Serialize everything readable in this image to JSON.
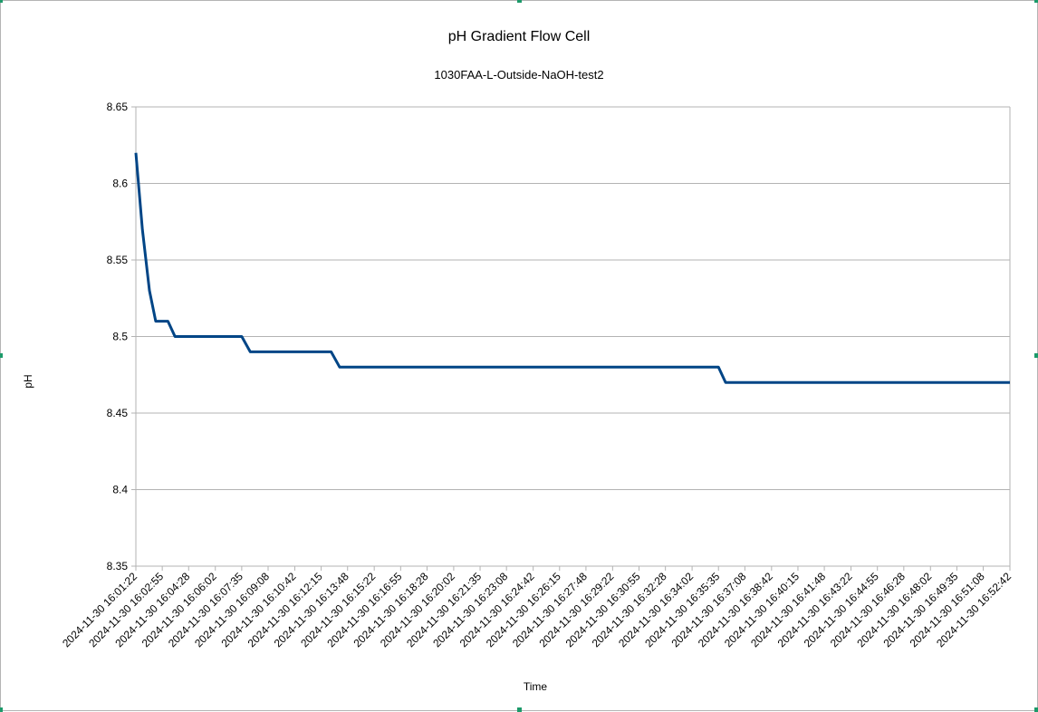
{
  "chart_data": {
    "type": "line",
    "title": "pH Gradient Flow Cell",
    "subtitle": "1030FAA-L-Outside-NaOH-test2",
    "xlabel": "Time",
    "ylabel": "pH",
    "ylim": [
      8.35,
      8.65
    ],
    "y_ticks": [
      "8.35",
      "8.4",
      "8.45",
      "8.5",
      "8.55",
      "8.6",
      "8.65"
    ],
    "grid": "horizontal",
    "line_color": "#004586",
    "x_tick_labels": [
      "2024-11-30 16:01:22",
      "2024-11-30 16:02:55",
      "2024-11-30 16:04:28",
      "2024-11-30 16:06:02",
      "2024-11-30 16:07:35",
      "2024-11-30 16:09:08",
      "2024-11-30 16:10:42",
      "2024-11-30 16:12:15",
      "2024-11-30 16:13:48",
      "2024-11-30 16:15:22",
      "2024-11-30 16:16:55",
      "2024-11-30 16:18:28",
      "2024-11-30 16:20:02",
      "2024-11-30 16:21:35",
      "2024-11-30 16:23:08",
      "2024-11-30 16:24:42",
      "2024-11-30 16:26:15",
      "2024-11-30 16:27:48",
      "2024-11-30 16:29:22",
      "2024-11-30 16:30:55",
      "2024-11-30 16:32:28",
      "2024-11-30 16:34:02",
      "2024-11-30 16:35:35",
      "2024-11-30 16:37:08",
      "2024-11-30 16:38:42",
      "2024-11-30 16:40:15",
      "2024-11-30 16:41:48",
      "2024-11-30 16:43:22",
      "2024-11-30 16:44:55",
      "2024-11-30 16:46:28",
      "2024-11-30 16:48:02",
      "2024-11-30 16:49:35",
      "2024-11-30 16:51:08",
      "2024-11-30 16:52:42"
    ],
    "points": [
      {
        "x": "2024-11-30 16:01:22",
        "y": 8.62
      },
      {
        "x": "2024-11-30 16:01:45",
        "y": 8.57
      },
      {
        "x": "2024-11-30 16:02:10",
        "y": 8.53
      },
      {
        "x": "2024-11-30 16:02:32",
        "y": 8.51
      },
      {
        "x": "2024-11-30 16:03:15",
        "y": 8.51
      },
      {
        "x": "2024-11-30 16:03:40",
        "y": 8.5
      },
      {
        "x": "2024-11-30 16:07:35",
        "y": 8.5
      },
      {
        "x": "2024-11-30 16:08:05",
        "y": 8.49
      },
      {
        "x": "2024-11-30 16:12:50",
        "y": 8.49
      },
      {
        "x": "2024-11-30 16:13:20",
        "y": 8.48
      },
      {
        "x": "2024-11-30 16:35:35",
        "y": 8.48
      },
      {
        "x": "2024-11-30 16:36:00",
        "y": 8.47
      },
      {
        "x": "2024-11-30 16:52:42",
        "y": 8.47
      }
    ]
  }
}
